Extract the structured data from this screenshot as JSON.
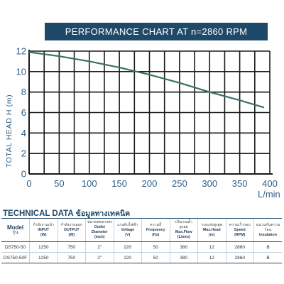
{
  "chart_data": {
    "type": "line",
    "title": "PERFORMANCE CHART AT  n=2860 RPM",
    "ylabel": "TOTAL HEAD  H (m)",
    "xlabel": "L/min",
    "xlim": [
      0,
      400
    ],
    "ylim": [
      0,
      12
    ],
    "xticks": [
      0,
      50,
      100,
      150,
      200,
      250,
      300,
      350,
      400
    ],
    "yticks": [
      0,
      2,
      4,
      6,
      8,
      10,
      12
    ],
    "grid": true,
    "series": [
      {
        "x": [
          0,
          50,
          100,
          150,
          200,
          250,
          300,
          350,
          390
        ],
        "y": [
          11.9,
          11.5,
          11.0,
          10.4,
          9.7,
          8.9,
          8.0,
          7.2,
          6.5
        ]
      }
    ],
    "colors": {
      "curve": "#3d6f6b",
      "banner": "#1f4968",
      "axis": "#1a1a1a",
      "tick_label": "#2f5d85"
    }
  },
  "technical_data": {
    "title": "TECHNICAL DATA",
    "title_thai": "ข้อมูลทางเทคนิค",
    "columns": [
      {
        "th": "",
        "en": "Model",
        "sub": "รุ่น"
      },
      {
        "th": "กำลังงานเข้า",
        "en": "INPUT",
        "sub": "(W)"
      },
      {
        "th": "กำลังงานออก",
        "en": "OUTPUT",
        "sub": "(W)"
      },
      {
        "th": "ขนาดท่อทางส่ง",
        "en": "Outlet Diameter",
        "sub": "(inch)"
      },
      {
        "th": "แรงดันไฟฟ้า",
        "en": "Voltage",
        "sub": "(V)"
      },
      {
        "th": "ความถี่",
        "en": "Frequency",
        "sub": "(Hz)"
      },
      {
        "th": "ปริมาณน้ำสูงสุด",
        "en": "Max.Flow",
        "sub": "(L/min)"
      },
      {
        "th": "ระยะส่งสูงสุด",
        "en": "Max.Head",
        "sub": "(m)"
      },
      {
        "th": "ความเร็วรอบ",
        "en": "Speed",
        "sub": "(RPM)"
      },
      {
        "th": "ฉนวนกันความร้อน",
        "en": "Insulation",
        "sub": ""
      }
    ],
    "rows": [
      [
        "DS750-50",
        "1250",
        "750",
        "2\"",
        "220",
        "50",
        "380",
        "12",
        "2860",
        "B"
      ],
      [
        "DS750-50F",
        "1250",
        "750",
        "2\"",
        "220",
        "50",
        "380",
        "12",
        "2860",
        "B"
      ]
    ]
  }
}
